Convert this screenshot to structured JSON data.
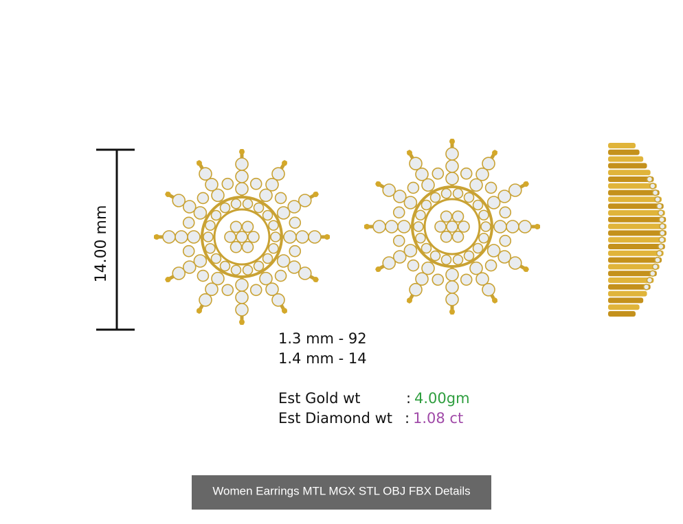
{
  "dimension": "14.00 mm",
  "stones": [
    "1.3 mm - 92",
    "1.4 mm - 14"
  ],
  "weights": [
    {
      "label": "Est Gold wt",
      "separator": ":",
      "value": "4.00gm"
    },
    {
      "label": "Est Diamond wt",
      "separator": ":",
      "value": "1.08 ct"
    }
  ],
  "button": "Women Earrings MTL MGX STL OBJ FBX Details"
}
